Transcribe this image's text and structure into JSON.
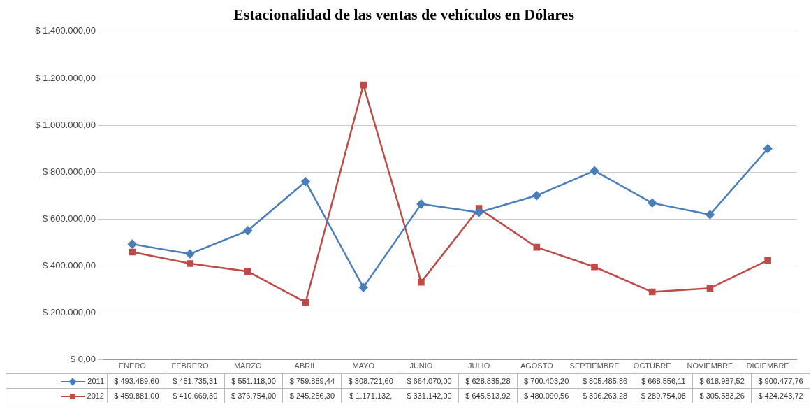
{
  "chart_data": {
    "type": "line",
    "title": "Estacionalidad de las ventas de vehículos en Dólares",
    "categories": [
      "ENERO",
      "FEBRERO",
      "MARZO",
      "ABRIL",
      "MAYO",
      "JUNIO",
      "JULIO",
      "AGOSTO",
      "SEPTIEMBRE",
      "OCTUBRE",
      "NOVIEMBRE",
      "DICIEMBRE"
    ],
    "series": [
      {
        "name": "2011",
        "color": "#4a7ebb",
        "marker": "diamond",
        "values": [
          493489.6,
          451735.31,
          551118.0,
          759889.44,
          308721.6,
          664070.0,
          628835.28,
          700403.2,
          805485.86,
          668556.11,
          618987.52,
          900477.76
        ],
        "value_labels": [
          "$ 493.489,60",
          "$ 451.735,31",
          "$ 551.118,00",
          "$ 759.889,44",
          "$ 308.721,60",
          "$ 664.070,00",
          "$ 628.835,28",
          "$ 700.403,20",
          "$ 805.485,86",
          "$ 668.556,11",
          "$ 618.987,52",
          "$ 900.477,76"
        ]
      },
      {
        "name": "2012",
        "color": "#be4b48",
        "marker": "square",
        "values": [
          459881.0,
          410669.3,
          376754.0,
          245256.3,
          1171132,
          331142.0,
          645513.92,
          480090.56,
          396263.28,
          289754.08,
          305583.26,
          424243.72
        ],
        "value_labels": [
          "$ 459.881,00",
          "$ 410.669,30",
          "$ 376.754,00",
          "$ 245.256,30",
          "$ 1.171.132,",
          "$ 331.142,00",
          "$ 645.513,92",
          "$ 480.090,56",
          "$ 396.263,28",
          "$ 289.754,08",
          "$ 305.583,26",
          "$ 424.243,72"
        ]
      }
    ],
    "ylim": [
      0,
      1400000
    ],
    "yticks": [
      {
        "value": 0,
        "label": "$ 0,00"
      },
      {
        "value": 200000,
        "label": "$ 200.000,00"
      },
      {
        "value": 400000,
        "label": "$ 400.000,00"
      },
      {
        "value": 600000,
        "label": "$ 600.000,00"
      },
      {
        "value": 800000,
        "label": "$ 800.000,00"
      },
      {
        "value": 1000000,
        "label": "$ 1.000.000,00"
      },
      {
        "value": 1200000,
        "label": "$ 1.200.000,00"
      },
      {
        "value": 1400000,
        "label": "$ 1.400.000,00"
      }
    ],
    "grid": "y",
    "legend": "bottom",
    "line_style": "solid"
  }
}
